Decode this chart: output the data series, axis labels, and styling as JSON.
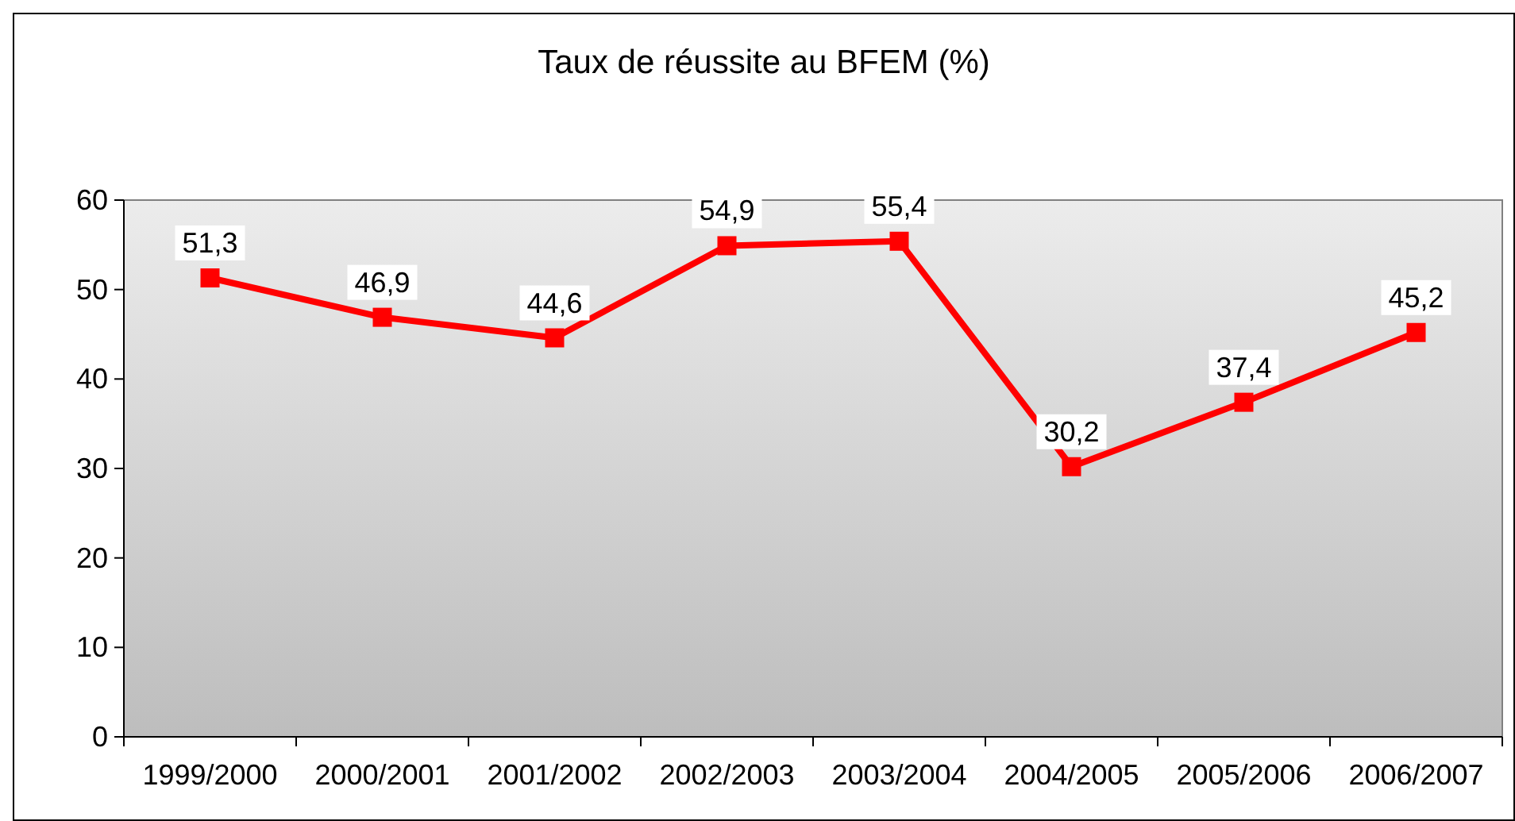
{
  "chart_data": {
    "type": "line",
    "title": "Taux de réussite au BFEM (%)",
    "categories": [
      "1999/2000",
      "2000/2001",
      "2001/2002",
      "2002/2003",
      "2003/2004",
      "2004/2005",
      "2005/2006",
      "2006/2007"
    ],
    "series": [
      {
        "color": "#ff0000",
        "values": [
          51.3,
          46.9,
          44.6,
          54.9,
          55.4,
          30.2,
          37.4,
          45.2
        ],
        "value_labels": [
          "51,3",
          "46,9",
          "44,6",
          "54,9",
          "55,4",
          "30,2",
          "37,4",
          "45,2"
        ]
      }
    ],
    "ylim": [
      0,
      60
    ],
    "yticks": [
      0,
      10,
      20,
      30,
      40,
      50,
      60
    ],
    "grid": false,
    "marker": "square",
    "line_style": "solid"
  }
}
